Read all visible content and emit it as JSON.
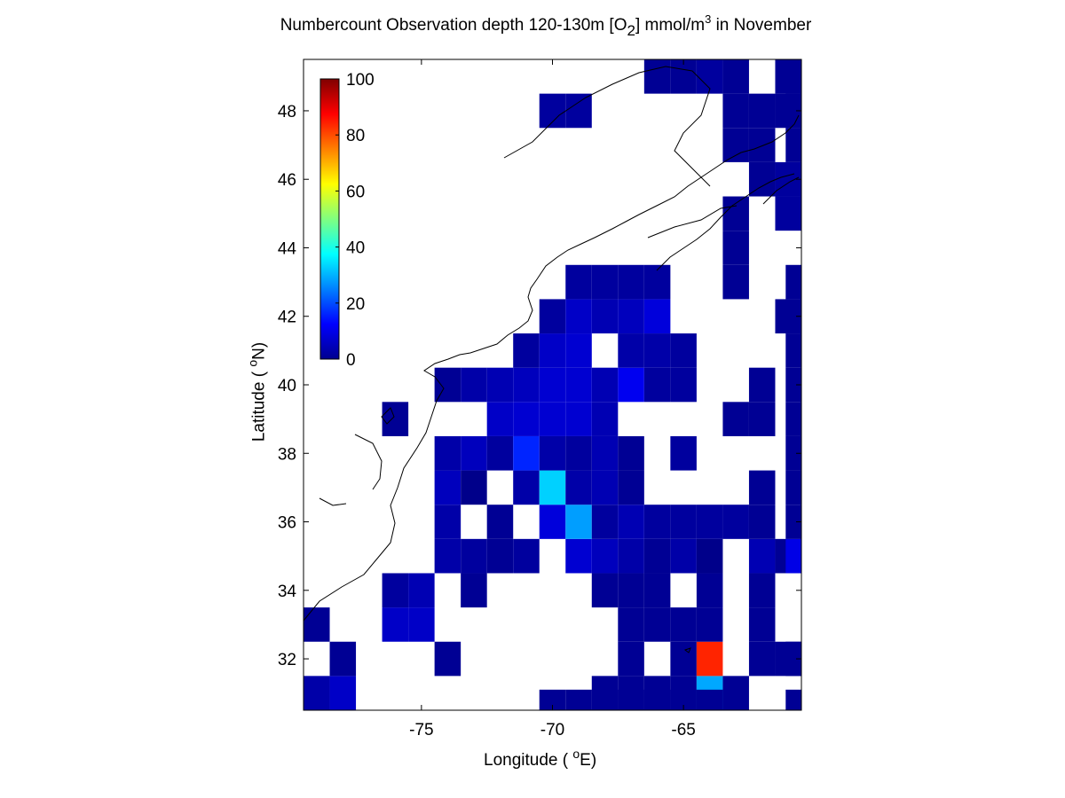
{
  "title": {
    "part1": "Numbercount Observation depth 120-130m [O",
    "sub": "2",
    "part2": "] mmol/m",
    "sup": "3",
    "part3": " in November"
  },
  "xlabel": {
    "pre": "Longitude ( ",
    "sup": "o",
    "post": "E)"
  },
  "ylabel": {
    "pre": "Latitude ( ",
    "sup": "o",
    "post": "N)"
  },
  "chart_data": {
    "type": "heatmap",
    "xlim": [
      -79.5,
      -60.5
    ],
    "ylim": [
      30.5,
      49.5
    ],
    "xticks": [
      -75,
      -70,
      -65
    ],
    "yticks": [
      32,
      34,
      36,
      38,
      40,
      42,
      44,
      46,
      48
    ],
    "grid": false,
    "colorbar": {
      "placement": "top-left inside",
      "range": [
        0,
        100
      ],
      "ticks": [
        0,
        20,
        40,
        60,
        80,
        100
      ],
      "colormap": "jet"
    },
    "cell_size_deg": 1,
    "cells": [
      [
        -79,
        31,
        4
      ],
      [
        -78,
        31,
        7
      ],
      [
        -78,
        32,
        2
      ],
      [
        -79,
        33,
        2
      ],
      [
        -76,
        33,
        7
      ],
      [
        -75,
        33,
        7
      ],
      [
        -76,
        34,
        3
      ],
      [
        -75,
        34,
        5
      ],
      [
        -74,
        32,
        2
      ],
      [
        -73,
        34,
        2
      ],
      [
        -74,
        35,
        4
      ],
      [
        -73,
        35,
        3
      ],
      [
        -72,
        35,
        2
      ],
      [
        -71,
        35,
        3
      ],
      [
        -69,
        35,
        8
      ],
      [
        -68,
        35,
        6
      ],
      [
        -67,
        35,
        4
      ],
      [
        -66,
        35,
        2
      ],
      [
        -65,
        35,
        4
      ],
      [
        -64,
        35,
        1
      ],
      [
        -62,
        35,
        5
      ],
      [
        -61,
        35,
        2
      ],
      [
        -60.6,
        35,
        10
      ],
      [
        -74,
        36,
        4
      ],
      [
        -72,
        36,
        2
      ],
      [
        -70,
        36,
        9
      ],
      [
        -69,
        36,
        28
      ],
      [
        -68,
        36,
        3
      ],
      [
        -67,
        36,
        5
      ],
      [
        -66,
        36,
        3
      ],
      [
        -65,
        36,
        3
      ],
      [
        -64,
        36,
        3
      ],
      [
        -63,
        36,
        3
      ],
      [
        -62,
        36,
        2
      ],
      [
        -60.6,
        36,
        2
      ],
      [
        -74,
        37,
        6
      ],
      [
        -73,
        37,
        1
      ],
      [
        -71,
        37,
        4
      ],
      [
        -70,
        37,
        33
      ],
      [
        -69,
        37,
        4
      ],
      [
        -68,
        37,
        5
      ],
      [
        -67,
        37,
        2
      ],
      [
        -62,
        37,
        2
      ],
      [
        -60.6,
        37,
        2
      ],
      [
        -74,
        38,
        4
      ],
      [
        -73,
        38,
        6
      ],
      [
        -72,
        38,
        3
      ],
      [
        -71,
        38,
        16
      ],
      [
        -70,
        38,
        4
      ],
      [
        -69,
        38,
        3
      ],
      [
        -68,
        38,
        5
      ],
      [
        -67,
        38,
        2
      ],
      [
        -65,
        38,
        3
      ],
      [
        -60.6,
        38,
        2
      ],
      [
        -76,
        39,
        2
      ],
      [
        -72,
        39,
        7
      ],
      [
        -71,
        39,
        8
      ],
      [
        -70,
        39,
        8
      ],
      [
        -69,
        39,
        8
      ],
      [
        -68,
        39,
        5
      ],
      [
        -63,
        39,
        2
      ],
      [
        -62,
        39,
        2
      ],
      [
        -60.6,
        39,
        2
      ],
      [
        -74,
        40,
        2
      ],
      [
        -73,
        40,
        4
      ],
      [
        -72,
        40,
        5
      ],
      [
        -71,
        40,
        6
      ],
      [
        -70,
        40,
        8
      ],
      [
        -69,
        40,
        8
      ],
      [
        -68,
        40,
        5
      ],
      [
        -67,
        40,
        11
      ],
      [
        -66,
        40,
        3
      ],
      [
        -65,
        40,
        3
      ],
      [
        -62,
        40,
        2
      ],
      [
        -60.6,
        40,
        2
      ],
      [
        -71,
        41,
        3
      ],
      [
        -70,
        41,
        7
      ],
      [
        -69,
        41,
        8
      ],
      [
        -67,
        41,
        4
      ],
      [
        -66,
        41,
        4
      ],
      [
        -65,
        41,
        3
      ],
      [
        -60.6,
        41,
        2
      ],
      [
        -70,
        42,
        3
      ],
      [
        -69,
        42,
        7
      ],
      [
        -68,
        42,
        5
      ],
      [
        -67,
        42,
        6
      ],
      [
        -66,
        42,
        9
      ],
      [
        -61,
        42,
        2
      ],
      [
        -60.6,
        42,
        2
      ],
      [
        -69,
        43,
        3
      ],
      [
        -68,
        43,
        3
      ],
      [
        -67,
        43,
        3
      ],
      [
        -66,
        43,
        3
      ],
      [
        -63,
        43,
        2
      ],
      [
        -60.6,
        43,
        2
      ],
      [
        -63,
        44,
        2
      ],
      [
        -63,
        45,
        2
      ],
      [
        -61,
        45,
        3
      ],
      [
        -62,
        46,
        2
      ],
      [
        -61,
        46,
        3
      ],
      [
        -63,
        47,
        2
      ],
      [
        -62,
        47,
        2
      ],
      [
        -60.6,
        47,
        2
      ],
      [
        -70,
        48,
        3
      ],
      [
        -69,
        48,
        3
      ],
      [
        -63,
        48,
        2
      ],
      [
        -62,
        48,
        2
      ],
      [
        -61,
        48,
        2
      ],
      [
        -60.6,
        48,
        2
      ],
      [
        -66,
        49,
        2
      ],
      [
        -65,
        49,
        2
      ],
      [
        -64,
        49,
        3
      ],
      [
        -63,
        49,
        2
      ],
      [
        -61,
        49,
        2
      ],
      [
        -68,
        31,
        2
      ],
      [
        -67,
        31,
        2
      ],
      [
        -66,
        31,
        2
      ],
      [
        -65,
        31,
        2
      ],
      [
        -64,
        31,
        29
      ],
      [
        -63,
        31,
        2
      ],
      [
        -70,
        30.6,
        2
      ],
      [
        -69,
        30.6,
        2
      ],
      [
        -68,
        30.6,
        2
      ],
      [
        -67,
        30.6,
        2
      ],
      [
        -66,
        30.6,
        2
      ],
      [
        -65,
        30.6,
        2
      ],
      [
        -64,
        30.6,
        2
      ],
      [
        -60.6,
        30.6,
        2
      ],
      [
        -67,
        32,
        2
      ],
      [
        -65,
        32,
        2
      ],
      [
        -64,
        32,
        84
      ],
      [
        -62,
        32,
        2
      ],
      [
        -61,
        32,
        2
      ],
      [
        -60.6,
        32,
        2
      ],
      [
        -67,
        33,
        2
      ],
      [
        -66,
        33,
        2
      ],
      [
        -65,
        33,
        2
      ],
      [
        -64,
        33,
        2
      ],
      [
        -62,
        33,
        2
      ],
      [
        -67,
        34,
        2
      ],
      [
        -66,
        34,
        2
      ],
      [
        -64,
        34,
        2
      ],
      [
        -62,
        34,
        2
      ],
      [
        -68,
        34,
        2
      ]
    ]
  }
}
